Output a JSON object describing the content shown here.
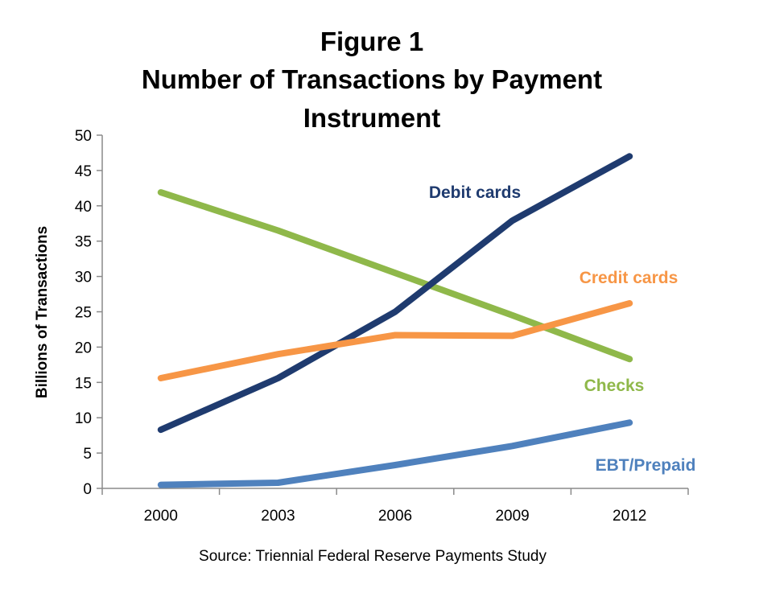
{
  "chart_data": {
    "type": "line",
    "title": [
      "Figure 1",
      "Number of Transactions by Payment",
      "Instrument"
    ],
    "ylabel": "Billions of Transactions",
    "source": "Source: Triennial Federal Reserve Payments Study",
    "categories": [
      "2000",
      "2003",
      "2006",
      "2009",
      "2012"
    ],
    "ylim": [
      0,
      50
    ],
    "yticks": [
      "0",
      "5",
      "10",
      "15",
      "20",
      "25",
      "30",
      "35",
      "40",
      "45",
      "50"
    ],
    "grid": false,
    "series": [
      {
        "name": "Checks",
        "values": [
          41.9,
          36.5,
          30.5,
          24.5,
          18.3
        ],
        "color": "#8fb84a"
      },
      {
        "name": "Debit cards",
        "values": [
          8.3,
          15.6,
          25.0,
          37.9,
          47.0
        ],
        "color": "#1f3b6f"
      },
      {
        "name": "Credit cards",
        "values": [
          15.6,
          19.0,
          21.7,
          21.6,
          26.2
        ],
        "color": "#f79646"
      },
      {
        "name": "EBT/Prepaid",
        "values": [
          0.5,
          0.8,
          3.3,
          6.0,
          9.3
        ],
        "color": "#4f81bd"
      }
    ]
  }
}
